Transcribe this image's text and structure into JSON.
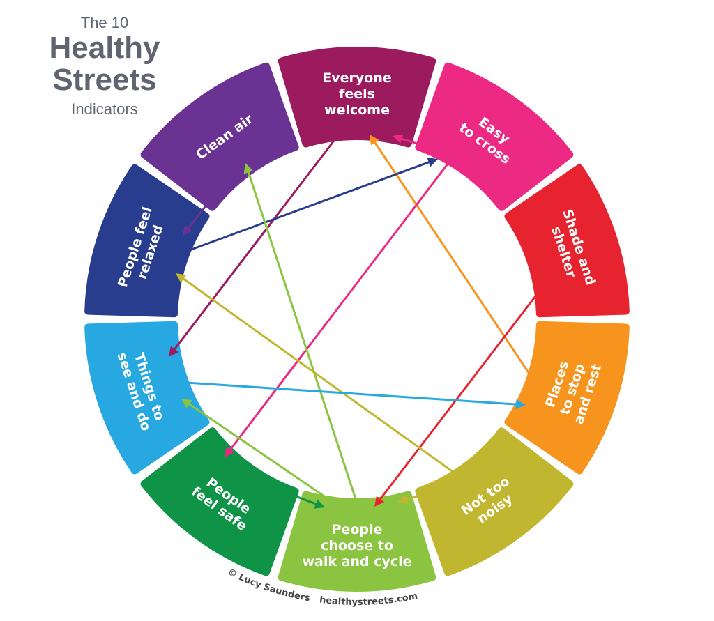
{
  "title": {
    "line1": "The 10",
    "line2": "Healthy",
    "line3": "Streets",
    "line4": "Indicators"
  },
  "indicators": [
    {
      "label": [
        "Everyone",
        "feels",
        "welcome"
      ],
      "color": "#9b1b5e"
    },
    {
      "label": [
        "Easy",
        "to cross"
      ],
      "color": "#ec2a84"
    },
    {
      "label": [
        "Shade and",
        "shelter"
      ],
      "color": "#e6232e"
    },
    {
      "label": [
        "Places",
        "to stop",
        "and rest"
      ],
      "color": "#f7941d"
    },
    {
      "label": [
        "Not too",
        "noisy"
      ],
      "color": "#c1b62f"
    },
    {
      "label": [
        "People",
        "choose to",
        "walk and cycle"
      ],
      "color": "#8bc441"
    },
    {
      "label": [
        "People",
        "feel safe"
      ],
      "color": "#0f9447"
    },
    {
      "label": [
        "Things to",
        "see and do"
      ],
      "color": "#27a8e0"
    },
    {
      "label": [
        "People feel",
        "relaxed"
      ],
      "color": "#283d8e"
    },
    {
      "label": [
        "Clean air"
      ],
      "color": "#6a3393"
    }
  ],
  "connections": [
    {
      "from": "Everyone feels welcome",
      "to": "Things to see and do"
    },
    {
      "from": "Places to stop and rest",
      "to": "Everyone feels welcome"
    },
    {
      "from": "Easy to cross",
      "to": "Everyone feels welcome"
    },
    {
      "from": "Easy to cross",
      "to": "People feel safe"
    },
    {
      "from": "People feel relaxed",
      "to": "Easy to cross"
    },
    {
      "from": "Clean air",
      "to": "People feel relaxed"
    },
    {
      "from": "Shade and shelter",
      "to": "People choose to walk and cycle"
    },
    {
      "from": "People choose to walk and cycle",
      "to": "Clean air"
    },
    {
      "from": "People choose to walk and cycle",
      "to": "Things to see and do"
    },
    {
      "from": "Not too noisy",
      "to": "People feel relaxed"
    },
    {
      "from": "Not too noisy",
      "to": "People choose to walk and cycle"
    },
    {
      "from": "Things to see and do",
      "to": "Places to stop and rest"
    },
    {
      "from": "People feel safe",
      "to": "People choose to walk and cycle"
    }
  ],
  "credit": {
    "author": "© Lucy Saunders",
    "site": "healthystreets.com"
  }
}
